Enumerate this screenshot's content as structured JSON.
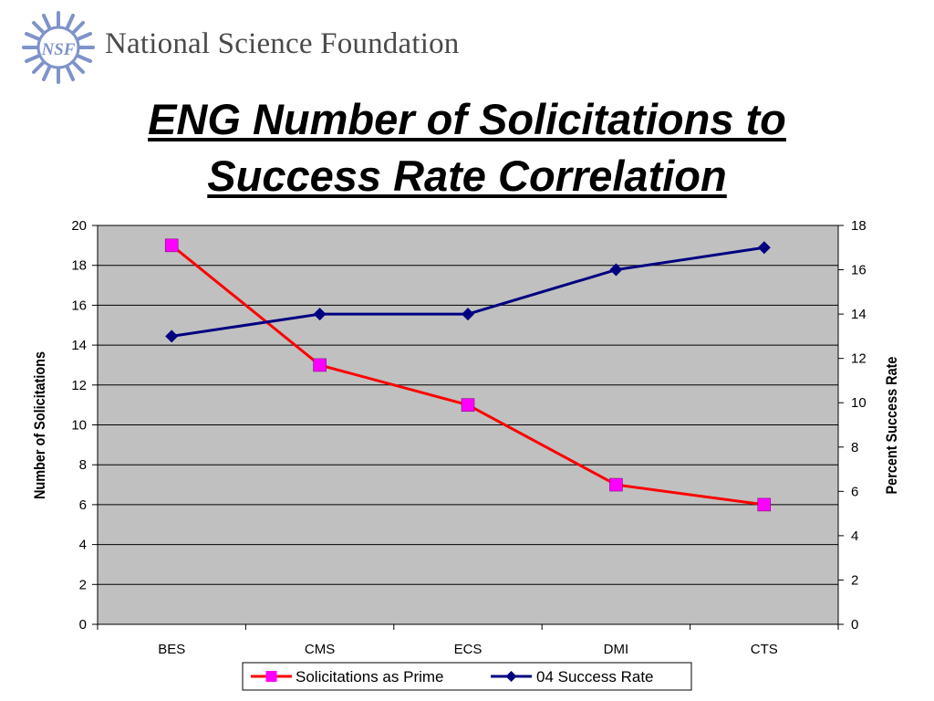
{
  "header": {
    "org_name": "National Science Foundation",
    "logo_text": "NSF"
  },
  "title_line1": "ENG Number of Solicitations to",
  "title_line2": "Success Rate Correlation",
  "chart_data": {
    "type": "line",
    "categories": [
      "BES",
      "CMS",
      "ECS",
      "DMI",
      "CTS"
    ],
    "series": [
      {
        "name": "Solicitations as Prime",
        "axis": "left",
        "values": [
          19,
          13,
          11,
          7,
          6
        ],
        "color": "#ff0000",
        "marker": "square",
        "marker_color": "#ff00ff"
      },
      {
        "name": "04 Success Rate",
        "axis": "right",
        "values": [
          13,
          14,
          14,
          16,
          17
        ],
        "color": "#000080",
        "marker": "diamond",
        "marker_color": "#000080"
      }
    ],
    "ylabel": "Number of Solicitations",
    "y2label": "Percent Success Rate",
    "ylim": [
      0,
      20
    ],
    "y2lim": [
      0,
      18
    ],
    "yticks": [
      "0",
      "2",
      "4",
      "6",
      "8",
      "10",
      "12",
      "14",
      "16",
      "18",
      "20"
    ],
    "y2ticks": [
      "0",
      "2",
      "4",
      "6",
      "8",
      "10",
      "12",
      "14",
      "16",
      "18"
    ],
    "grid": true,
    "plot_background": "#c0c0c0",
    "legend": "bottom"
  }
}
